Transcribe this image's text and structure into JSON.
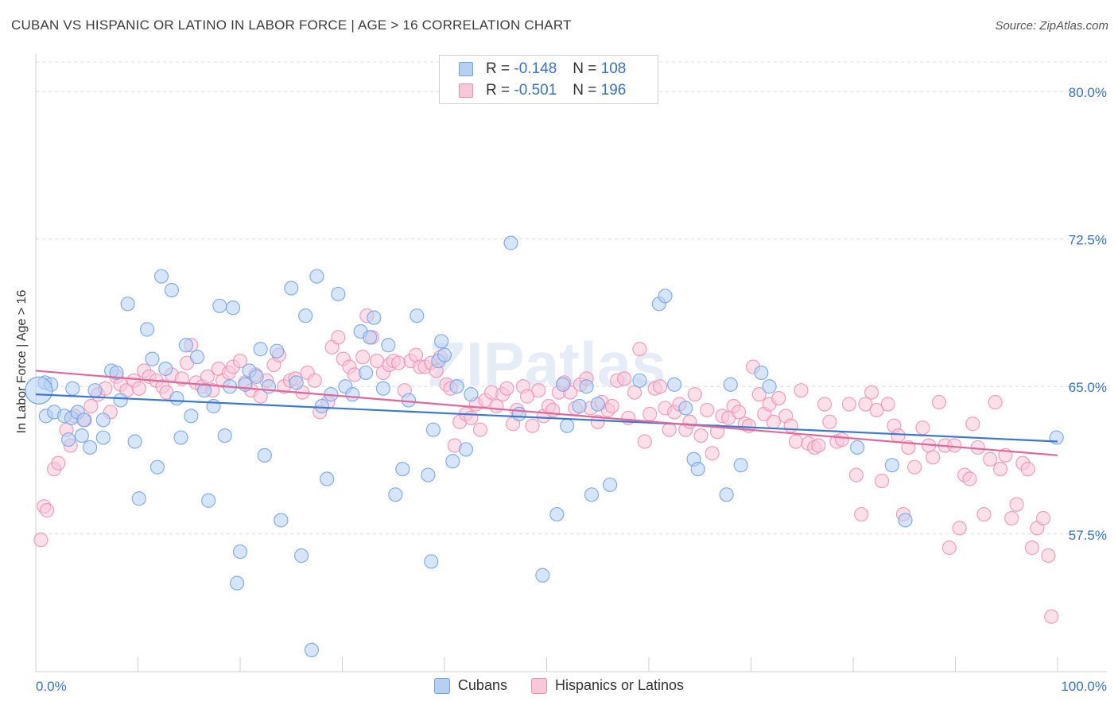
{
  "title": "CUBAN VS HISPANIC OR LATINO IN LABOR FORCE | AGE > 16 CORRELATION CHART",
  "source": "Source: ZipAtlas.com",
  "watermark": "ZIPatlas",
  "colors": {
    "cubans": "#6fa2e8",
    "hispanics": "#ef8fb0",
    "blue_line": "#3b78d4",
    "pink_line": "#e0679a",
    "tick_text": "#3a72c5"
  },
  "legend": {
    "rows": [
      {
        "r_label": "R =",
        "r_value": "-0.148",
        "n_label": "N =",
        "n_value": "108"
      },
      {
        "r_label": "R =",
        "r_value": "-0.501",
        "n_label": "N =",
        "n_value": "196"
      }
    ],
    "items": [
      "Cubans",
      "Hispanics or Latinos"
    ]
  },
  "chart_data": {
    "type": "scatter",
    "title": "CUBAN VS HISPANIC OR LATINO IN LABOR FORCE | AGE > 16 CORRELATION CHART",
    "xlabel": "",
    "ylabel": "In Labor Force | Age > 16",
    "xlim": [
      0,
      100
    ],
    "ylim": [
      50.5,
      81.5
    ],
    "x_tick_labels": [
      "0.0%",
      "100.0%"
    ],
    "y_ticks": [
      57.5,
      65.0,
      72.5,
      80.0
    ],
    "y_tick_labels": [
      "57.5%",
      "65.0%",
      "72.5%",
      "80.0%"
    ],
    "grid": "horizontal dashed",
    "legend_position": "top-center",
    "series": [
      {
        "name": "Cubans",
        "r": -0.148,
        "n": 108,
        "trend": [
          [
            0,
            64.6
          ],
          [
            100,
            62.2
          ]
        ],
        "points": [
          [
            0.9,
            65.2
          ],
          [
            1.0,
            63.5
          ],
          [
            1.5,
            65.1
          ],
          [
            1.8,
            63.7
          ],
          [
            2.8,
            63.5
          ],
          [
            3.2,
            62.3
          ],
          [
            3.5,
            63.4
          ],
          [
            3.6,
            64.9
          ],
          [
            4.1,
            63.7
          ],
          [
            4.5,
            62.5
          ],
          [
            4.7,
            63.3
          ],
          [
            5.3,
            61.9
          ],
          [
            5.8,
            64.8
          ],
          [
            6.6,
            63.3
          ],
          [
            6.6,
            62.4
          ],
          [
            7.4,
            65.8
          ],
          [
            7.9,
            65.7
          ],
          [
            8.3,
            64.3
          ],
          [
            9.0,
            69.2
          ],
          [
            9.7,
            62.2
          ],
          [
            10.1,
            59.3
          ],
          [
            10.9,
            67.9
          ],
          [
            11.4,
            66.4
          ],
          [
            11.9,
            60.9
          ],
          [
            12.3,
            70.6
          ],
          [
            12.7,
            65.9
          ],
          [
            13.3,
            69.9
          ],
          [
            13.8,
            64.4
          ],
          [
            14.2,
            62.4
          ],
          [
            14.7,
            67.1
          ],
          [
            15.2,
            63.5
          ],
          [
            15.8,
            66.5
          ],
          [
            16.5,
            64.8
          ],
          [
            16.9,
            59.2
          ],
          [
            17.4,
            64.0
          ],
          [
            18.0,
            69.1
          ],
          [
            18.5,
            62.5
          ],
          [
            19.0,
            65.0
          ],
          [
            19.3,
            69.0
          ],
          [
            19.7,
            55.0
          ],
          [
            20.0,
            56.6
          ],
          [
            20.5,
            65.1
          ],
          [
            20.9,
            65.8
          ],
          [
            21.6,
            65.5
          ],
          [
            22.0,
            66.9
          ],
          [
            22.4,
            61.5
          ],
          [
            22.8,
            65.0
          ],
          [
            23.6,
            66.8
          ],
          [
            24.0,
            58.2
          ],
          [
            25.0,
            70.0
          ],
          [
            25.5,
            65.2
          ],
          [
            26.0,
            56.4
          ],
          [
            26.4,
            68.6
          ],
          [
            27.0,
            51.6
          ],
          [
            27.5,
            70.6
          ],
          [
            28.0,
            64.0
          ],
          [
            28.5,
            60.3
          ],
          [
            28.9,
            64.6
          ],
          [
            29.6,
            69.7
          ],
          [
            30.3,
            65.0
          ],
          [
            31.0,
            64.6
          ],
          [
            31.8,
            67.8
          ],
          [
            32.3,
            65.7
          ],
          [
            32.7,
            67.5
          ],
          [
            33.1,
            68.5
          ],
          [
            34.0,
            64.9
          ],
          [
            34.5,
            67.1
          ],
          [
            35.2,
            59.5
          ],
          [
            35.9,
            60.8
          ],
          [
            36.5,
            64.3
          ],
          [
            37.3,
            68.6
          ],
          [
            38.4,
            60.5
          ],
          [
            38.7,
            56.1
          ],
          [
            38.9,
            62.8
          ],
          [
            39.4,
            66.3
          ],
          [
            39.7,
            67.3
          ],
          [
            40.0,
            66.6
          ],
          [
            40.8,
            61.2
          ],
          [
            41.2,
            65.0
          ],
          [
            42.1,
            61.8
          ],
          [
            42.6,
            64.6
          ],
          [
            46.5,
            72.3
          ],
          [
            47.3,
            63.6
          ],
          [
            49.6,
            55.4
          ],
          [
            51.0,
            58.5
          ],
          [
            51.6,
            65.1
          ],
          [
            52.0,
            63.0
          ],
          [
            53.2,
            64.0
          ],
          [
            53.9,
            65.0
          ],
          [
            54.4,
            59.5
          ],
          [
            55.0,
            64.1
          ],
          [
            56.2,
            60.0
          ],
          [
            59.1,
            65.3
          ],
          [
            61.0,
            69.2
          ],
          [
            61.6,
            69.6
          ],
          [
            62.5,
            65.1
          ],
          [
            63.6,
            63.9
          ],
          [
            64.4,
            61.3
          ],
          [
            64.8,
            60.8
          ],
          [
            67.6,
            59.5
          ],
          [
            68.0,
            65.1
          ],
          [
            69.0,
            61.0
          ],
          [
            71.0,
            65.7
          ],
          [
            71.8,
            65.0
          ],
          [
            80.4,
            61.9
          ],
          [
            83.8,
            61.0
          ],
          [
            85.1,
            58.2
          ],
          [
            99.9,
            62.4
          ]
        ]
      },
      {
        "name": "Hispanics or Latinos",
        "r": -0.501,
        "n": 196,
        "trend": [
          [
            0,
            65.8
          ],
          [
            100,
            61.5
          ]
        ],
        "points": [
          [
            0.5,
            57.2
          ],
          [
            0.8,
            58.9
          ],
          [
            1.1,
            58.7
          ],
          [
            1.8,
            60.8
          ],
          [
            2.2,
            61.1
          ],
          [
            3.0,
            62.8
          ],
          [
            3.4,
            62.0
          ],
          [
            3.8,
            63.5
          ],
          [
            4.8,
            63.3
          ],
          [
            5.4,
            64.0
          ],
          [
            6.1,
            64.6
          ],
          [
            6.8,
            64.9
          ],
          [
            7.3,
            63.7
          ],
          [
            7.9,
            65.5
          ],
          [
            8.3,
            65.1
          ],
          [
            8.9,
            64.8
          ],
          [
            9.6,
            65.3
          ],
          [
            10.1,
            64.9
          ],
          [
            10.6,
            65.8
          ],
          [
            11.1,
            65.5
          ],
          [
            11.8,
            65.3
          ],
          [
            12.4,
            65.0
          ],
          [
            12.8,
            64.7
          ],
          [
            13.3,
            65.6
          ],
          [
            14.3,
            65.4
          ],
          [
            14.8,
            66.2
          ],
          [
            15.2,
            67.1
          ],
          [
            15.7,
            65.2
          ],
          [
            16.3,
            65.0
          ],
          [
            16.8,
            65.5
          ],
          [
            17.3,
            64.8
          ],
          [
            17.9,
            65.9
          ],
          [
            18.3,
            65.3
          ],
          [
            18.9,
            65.7
          ],
          [
            19.3,
            66.0
          ],
          [
            20.0,
            66.3
          ],
          [
            20.5,
            65.2
          ],
          [
            21.1,
            64.8
          ],
          [
            21.5,
            65.6
          ],
          [
            22.0,
            64.5
          ],
          [
            22.6,
            65.3
          ],
          [
            23.3,
            66.1
          ],
          [
            23.8,
            66.6
          ],
          [
            24.3,
            65.0
          ],
          [
            24.9,
            65.3
          ],
          [
            25.4,
            65.4
          ],
          [
            26.1,
            64.7
          ],
          [
            26.6,
            65.7
          ],
          [
            27.3,
            65.3
          ],
          [
            27.8,
            63.7
          ],
          [
            28.6,
            64.2
          ],
          [
            29.0,
            67.0
          ],
          [
            29.6,
            67.5
          ],
          [
            30.1,
            66.4
          ],
          [
            30.7,
            66.0
          ],
          [
            31.2,
            65.6
          ],
          [
            32.0,
            66.5
          ],
          [
            32.4,
            68.6
          ],
          [
            32.9,
            67.5
          ],
          [
            33.4,
            66.3
          ],
          [
            34.0,
            65.7
          ],
          [
            34.6,
            66.1
          ],
          [
            35.0,
            66.3
          ],
          [
            35.5,
            66.2
          ],
          [
            36.1,
            64.8
          ],
          [
            36.7,
            66.3
          ],
          [
            37.2,
            66.6
          ],
          [
            37.6,
            66.0
          ],
          [
            38.1,
            66.0
          ],
          [
            38.7,
            66.2
          ],
          [
            39.2,
            65.8
          ],
          [
            39.6,
            66.5
          ],
          [
            40.2,
            65.1
          ],
          [
            40.6,
            64.9
          ],
          [
            41.0,
            62.0
          ],
          [
            41.5,
            63.2
          ],
          [
            42.1,
            63.6
          ],
          [
            42.6,
            63.4
          ],
          [
            43.1,
            64.1
          ],
          [
            43.5,
            62.8
          ],
          [
            44.0,
            64.3
          ],
          [
            44.6,
            64.7
          ],
          [
            45.1,
            64.0
          ],
          [
            45.7,
            64.6
          ],
          [
            46.1,
            64.9
          ],
          [
            46.7,
            63.1
          ],
          [
            47.1,
            63.8
          ],
          [
            47.7,
            65.0
          ],
          [
            48.1,
            64.5
          ],
          [
            48.6,
            63.0
          ],
          [
            49.2,
            64.8
          ],
          [
            49.7,
            63.5
          ],
          [
            50.2,
            64.0
          ],
          [
            50.6,
            63.8
          ],
          [
            51.2,
            64.7
          ],
          [
            51.7,
            65.2
          ],
          [
            52.3,
            64.7
          ],
          [
            52.8,
            63.9
          ],
          [
            53.3,
            65.1
          ],
          [
            53.9,
            65.4
          ],
          [
            54.3,
            63.9
          ],
          [
            55.0,
            63.2
          ],
          [
            55.4,
            64.2
          ],
          [
            56.0,
            63.8
          ],
          [
            56.4,
            64.0
          ],
          [
            56.9,
            65.3
          ],
          [
            57.6,
            65.4
          ],
          [
            58.0,
            63.4
          ],
          [
            58.6,
            64.7
          ],
          [
            59.1,
            66.9
          ],
          [
            59.6,
            62.2
          ],
          [
            60.1,
            63.6
          ],
          [
            60.6,
            64.9
          ],
          [
            61.1,
            65.0
          ],
          [
            61.6,
            63.9
          ],
          [
            62.0,
            62.8
          ],
          [
            62.5,
            63.7
          ],
          [
            63.0,
            64.1
          ],
          [
            63.6,
            62.8
          ],
          [
            64.0,
            63.2
          ],
          [
            64.5,
            64.6
          ],
          [
            65.1,
            62.5
          ],
          [
            65.7,
            63.8
          ],
          [
            66.2,
            61.6
          ],
          [
            66.7,
            62.7
          ],
          [
            67.2,
            63.5
          ],
          [
            67.8,
            63.4
          ],
          [
            68.3,
            64.0
          ],
          [
            68.8,
            63.7
          ],
          [
            69.4,
            63.1
          ],
          [
            69.8,
            63.0
          ],
          [
            70.2,
            66.0
          ],
          [
            70.8,
            64.6
          ],
          [
            71.3,
            63.6
          ],
          [
            71.8,
            64.1
          ],
          [
            72.2,
            63.2
          ],
          [
            72.7,
            64.4
          ],
          [
            73.4,
            63.5
          ],
          [
            73.9,
            63.0
          ],
          [
            74.4,
            62.2
          ],
          [
            74.9,
            64.8
          ],
          [
            75.6,
            62.1
          ],
          [
            76.2,
            61.9
          ],
          [
            76.6,
            62.0
          ],
          [
            77.2,
            64.1
          ],
          [
            77.7,
            63.2
          ],
          [
            78.4,
            62.2
          ],
          [
            78.9,
            62.3
          ],
          [
            79.6,
            64.1
          ],
          [
            80.3,
            60.5
          ],
          [
            80.8,
            58.5
          ],
          [
            81.2,
            64.1
          ],
          [
            81.8,
            64.7
          ],
          [
            82.3,
            63.8
          ],
          [
            82.8,
            60.2
          ],
          [
            83.4,
            64.1
          ],
          [
            84.0,
            63.0
          ],
          [
            84.4,
            62.5
          ],
          [
            84.9,
            58.5
          ],
          [
            85.4,
            61.9
          ],
          [
            86.0,
            60.9
          ],
          [
            86.8,
            62.9
          ],
          [
            87.4,
            62.0
          ],
          [
            87.8,
            61.4
          ],
          [
            88.4,
            64.2
          ],
          [
            89.0,
            62.0
          ],
          [
            89.4,
            56.8
          ],
          [
            89.9,
            62.0
          ],
          [
            90.4,
            57.8
          ],
          [
            90.9,
            60.5
          ],
          [
            91.4,
            60.3
          ],
          [
            91.7,
            63.1
          ],
          [
            92.2,
            61.9
          ],
          [
            92.8,
            58.5
          ],
          [
            93.4,
            61.3
          ],
          [
            93.9,
            64.2
          ],
          [
            94.4,
            60.8
          ],
          [
            94.9,
            61.5
          ],
          [
            95.5,
            58.3
          ],
          [
            96.0,
            59.0
          ],
          [
            96.6,
            61.1
          ],
          [
            97.1,
            60.8
          ],
          [
            97.5,
            56.8
          ],
          [
            98.0,
            57.8
          ],
          [
            98.6,
            58.3
          ],
          [
            99.1,
            56.4
          ],
          [
            99.4,
            53.3
          ]
        ]
      }
    ]
  }
}
